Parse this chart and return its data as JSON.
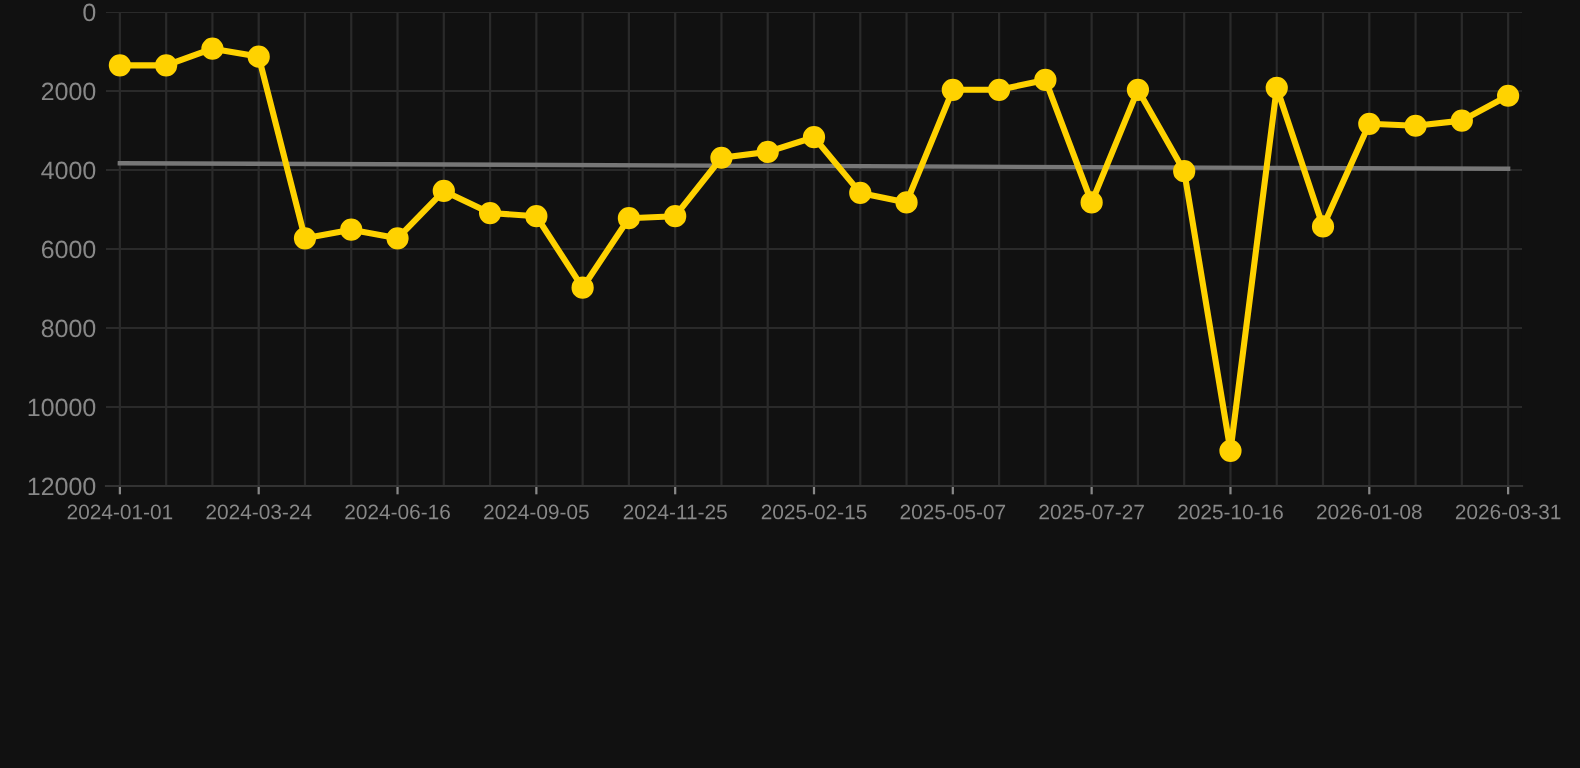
{
  "chart_data": {
    "type": "line",
    "categories": [
      "2024-01-01",
      null,
      null,
      "2024-03-24",
      null,
      null,
      "2024-06-16",
      null,
      null,
      "2024-09-05",
      null,
      null,
      "2024-11-25",
      null,
      null,
      "2025-02-15",
      null,
      null,
      "2025-05-07",
      null,
      null,
      "2025-07-27",
      null,
      null,
      "2025-10-16",
      null,
      null,
      "2026-01-08",
      null,
      null,
      "2026-03-31"
    ],
    "series": [
      {
        "color": "#ffd200",
        "marker": "circle",
        "values": [
          1350,
          1350,
          930,
          1130,
          5730,
          5510,
          5730,
          4530,
          5090,
          5170,
          6980,
          5220,
          5170,
          3690,
          3540,
          3170,
          4580,
          4820,
          1970,
          1970,
          1720,
          4820,
          1970,
          4030,
          11110,
          1920,
          5430,
          2830,
          2880,
          2750,
          2120
        ]
      },
      {
        "color": "#777777",
        "marker": "none",
        "values": [
          3830,
          null,
          null,
          null,
          null,
          null,
          null,
          null,
          null,
          null,
          null,
          null,
          null,
          null,
          null,
          null,
          null,
          null,
          null,
          null,
          null,
          null,
          null,
          null,
          null,
          null,
          null,
          null,
          null,
          null,
          3970
        ]
      }
    ],
    "ylim": [
      12000,
      0
    ],
    "yticks": [
      0,
      2000,
      4000,
      6000,
      8000,
      10000,
      12000
    ],
    "grid": true
  }
}
